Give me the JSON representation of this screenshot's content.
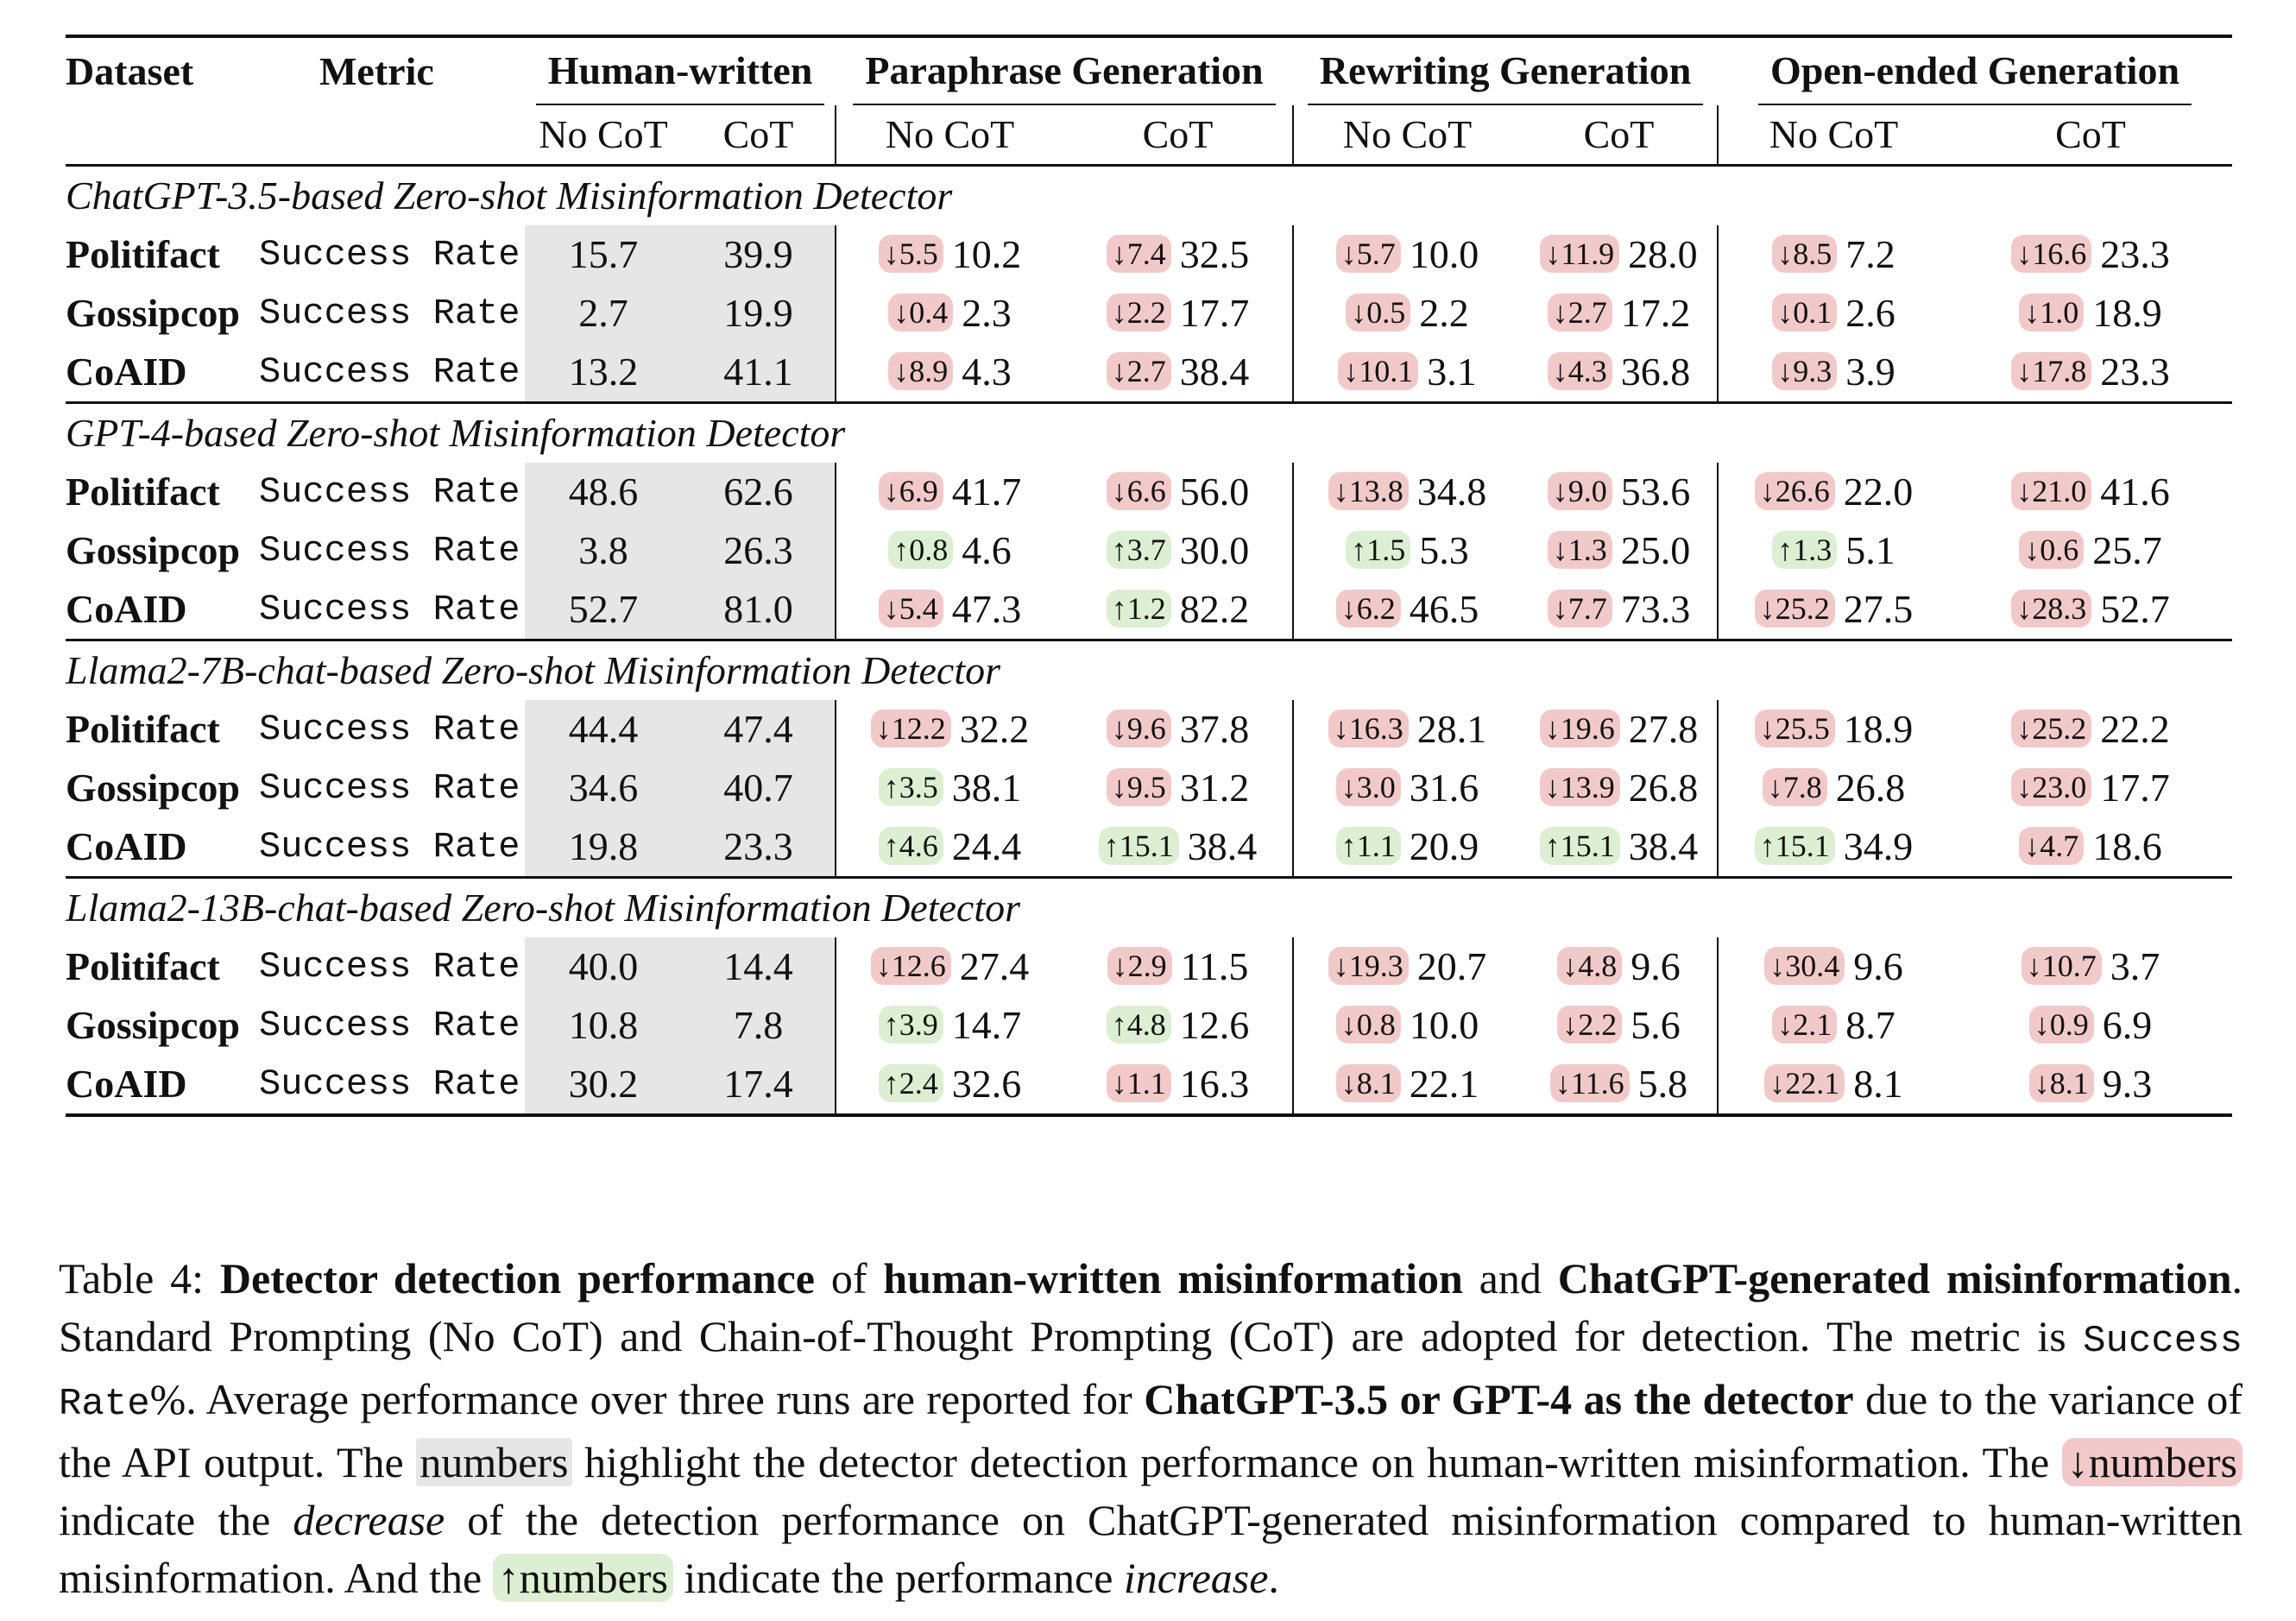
{
  "table": {
    "header": {
      "dataset": "Dataset",
      "metric": "Metric",
      "groups": [
        "Human-written",
        "Paraphrase Generation",
        "Rewriting Generation",
        "Open-ended Generation"
      ],
      "no_cot": "No CoT",
      "cot": "CoT"
    },
    "sections": [
      {
        "title": "ChatGPT-3.5-based Zero-shot Misinformation Detector",
        "rows": [
          {
            "dataset": "Politifact",
            "metric": "Success Rate",
            "hw": [
              "15.7",
              "39.9"
            ],
            "cells": [
              {
                "d": "↓5.5",
                "dir": "dec",
                "v": "10.2"
              },
              {
                "d": "↓7.4",
                "dir": "dec",
                "v": "32.5"
              },
              {
                "d": "↓5.7",
                "dir": "dec",
                "v": "10.0"
              },
              {
                "d": "↓11.9",
                "dir": "dec",
                "v": "28.0"
              },
              {
                "d": "↓8.5",
                "dir": "dec",
                "v": "7.2"
              },
              {
                "d": "↓16.6",
                "dir": "dec",
                "v": "23.3"
              }
            ]
          },
          {
            "dataset": "Gossipcop",
            "metric": "Success Rate",
            "hw": [
              "2.7",
              "19.9"
            ],
            "cells": [
              {
                "d": "↓0.4",
                "dir": "dec",
                "v": "2.3"
              },
              {
                "d": "↓2.2",
                "dir": "dec",
                "v": "17.7"
              },
              {
                "d": "↓0.5",
                "dir": "dec",
                "v": "2.2"
              },
              {
                "d": "↓2.7",
                "dir": "dec",
                "v": "17.2"
              },
              {
                "d": "↓0.1",
                "dir": "dec",
                "v": "2.6"
              },
              {
                "d": "↓1.0",
                "dir": "dec",
                "v": "18.9"
              }
            ]
          },
          {
            "dataset": "CoAID",
            "metric": "Success Rate",
            "hw": [
              "13.2",
              "41.1"
            ],
            "cells": [
              {
                "d": "↓8.9",
                "dir": "dec",
                "v": "4.3"
              },
              {
                "d": "↓2.7",
                "dir": "dec",
                "v": "38.4"
              },
              {
                "d": "↓10.1",
                "dir": "dec",
                "v": "3.1"
              },
              {
                "d": "↓4.3",
                "dir": "dec",
                "v": "36.8"
              },
              {
                "d": "↓9.3",
                "dir": "dec",
                "v": "3.9"
              },
              {
                "d": "↓17.8",
                "dir": "dec",
                "v": "23.3"
              }
            ]
          }
        ]
      },
      {
        "title": "GPT-4-based Zero-shot Misinformation Detector",
        "rows": [
          {
            "dataset": "Politifact",
            "metric": "Success Rate",
            "hw": [
              "48.6",
              "62.6"
            ],
            "cells": [
              {
                "d": "↓6.9",
                "dir": "dec",
                "v": "41.7"
              },
              {
                "d": "↓6.6",
                "dir": "dec",
                "v": "56.0"
              },
              {
                "d": "↓13.8",
                "dir": "dec",
                "v": "34.8"
              },
              {
                "d": "↓9.0",
                "dir": "dec",
                "v": "53.6"
              },
              {
                "d": "↓26.6",
                "dir": "dec",
                "v": "22.0"
              },
              {
                "d": "↓21.0",
                "dir": "dec",
                "v": "41.6"
              }
            ]
          },
          {
            "dataset": "Gossipcop",
            "metric": "Success Rate",
            "hw": [
              "3.8",
              "26.3"
            ],
            "cells": [
              {
                "d": "↑0.8",
                "dir": "inc",
                "v": "4.6"
              },
              {
                "d": "↑3.7",
                "dir": "inc",
                "v": "30.0"
              },
              {
                "d": "↑1.5",
                "dir": "inc",
                "v": "5.3"
              },
              {
                "d": "↓1.3",
                "dir": "dec",
                "v": "25.0"
              },
              {
                "d": "↑1.3",
                "dir": "inc",
                "v": "5.1"
              },
              {
                "d": "↓0.6",
                "dir": "dec",
                "v": "25.7"
              }
            ]
          },
          {
            "dataset": "CoAID",
            "metric": "Success Rate",
            "hw": [
              "52.7",
              "81.0"
            ],
            "cells": [
              {
                "d": "↓5.4",
                "dir": "dec",
                "v": "47.3"
              },
              {
                "d": "↑1.2",
                "dir": "inc",
                "v": "82.2"
              },
              {
                "d": "↓6.2",
                "dir": "dec",
                "v": "46.5"
              },
              {
                "d": "↓7.7",
                "dir": "dec",
                "v": "73.3"
              },
              {
                "d": "↓25.2",
                "dir": "dec",
                "v": "27.5"
              },
              {
                "d": "↓28.3",
                "dir": "dec",
                "v": "52.7"
              }
            ]
          }
        ]
      },
      {
        "title": "Llama2-7B-chat-based Zero-shot Misinformation Detector",
        "rows": [
          {
            "dataset": "Politifact",
            "metric": "Success Rate",
            "hw": [
              "44.4",
              "47.4"
            ],
            "cells": [
              {
                "d": "↓12.2",
                "dir": "dec",
                "v": "32.2"
              },
              {
                "d": "↓9.6",
                "dir": "dec",
                "v": "37.8"
              },
              {
                "d": "↓16.3",
                "dir": "dec",
                "v": "28.1"
              },
              {
                "d": "↓19.6",
                "dir": "dec",
                "v": "27.8"
              },
              {
                "d": "↓25.5",
                "dir": "dec",
                "v": "18.9"
              },
              {
                "d": "↓25.2",
                "dir": "dec",
                "v": "22.2"
              }
            ]
          },
          {
            "dataset": "Gossipcop",
            "metric": "Success Rate",
            "hw": [
              "34.6",
              "40.7"
            ],
            "cells": [
              {
                "d": "↑3.5",
                "dir": "inc",
                "v": "38.1"
              },
              {
                "d": "↓9.5",
                "dir": "dec",
                "v": "31.2"
              },
              {
                "d": "↓3.0",
                "dir": "dec",
                "v": "31.6"
              },
              {
                "d": "↓13.9",
                "dir": "dec",
                "v": "26.8"
              },
              {
                "d": "↓7.8",
                "dir": "dec",
                "v": "26.8"
              },
              {
                "d": "↓23.0",
                "dir": "dec",
                "v": "17.7"
              }
            ]
          },
          {
            "dataset": "CoAID",
            "metric": "Success Rate",
            "hw": [
              "19.8",
              "23.3"
            ],
            "cells": [
              {
                "d": "↑4.6",
                "dir": "inc",
                "v": "24.4"
              },
              {
                "d": "↑15.1",
                "dir": "inc",
                "v": "38.4"
              },
              {
                "d": "↑1.1",
                "dir": "inc",
                "v": "20.9"
              },
              {
                "d": "↑15.1",
                "dir": "inc",
                "v": "38.4"
              },
              {
                "d": "↑15.1",
                "dir": "inc",
                "v": "34.9"
              },
              {
                "d": "↓4.7",
                "dir": "dec",
                "v": "18.6"
              }
            ]
          }
        ]
      },
      {
        "title": "Llama2-13B-chat-based Zero-shot Misinformation Detector",
        "rows": [
          {
            "dataset": "Politifact",
            "metric": "Success Rate",
            "hw": [
              "40.0",
              "14.4"
            ],
            "cells": [
              {
                "d": "↓12.6",
                "dir": "dec",
                "v": "27.4"
              },
              {
                "d": "↓2.9",
                "dir": "dec",
                "v": "11.5"
              },
              {
                "d": "↓19.3",
                "dir": "dec",
                "v": "20.7"
              },
              {
                "d": "↓4.8",
                "dir": "dec",
                "v": "9.6"
              },
              {
                "d": "↓30.4",
                "dir": "dec",
                "v": "9.6"
              },
              {
                "d": "↓10.7",
                "dir": "dec",
                "v": "3.7"
              }
            ]
          },
          {
            "dataset": "Gossipcop",
            "metric": "Success Rate",
            "hw": [
              "10.8",
              "7.8"
            ],
            "cells": [
              {
                "d": "↑3.9",
                "dir": "inc",
                "v": "14.7"
              },
              {
                "d": "↑4.8",
                "dir": "inc",
                "v": "12.6"
              },
              {
                "d": "↓0.8",
                "dir": "dec",
                "v": "10.0"
              },
              {
                "d": "↓2.2",
                "dir": "dec",
                "v": "5.6"
              },
              {
                "d": "↓2.1",
                "dir": "dec",
                "v": "8.7"
              },
              {
                "d": "↓0.9",
                "dir": "dec",
                "v": "6.9"
              }
            ]
          },
          {
            "dataset": "CoAID",
            "metric": "Success Rate",
            "hw": [
              "30.2",
              "17.4"
            ],
            "cells": [
              {
                "d": "↑2.4",
                "dir": "inc",
                "v": "32.6"
              },
              {
                "d": "↓1.1",
                "dir": "dec",
                "v": "16.3"
              },
              {
                "d": "↓8.1",
                "dir": "dec",
                "v": "22.1"
              },
              {
                "d": "↓11.6",
                "dir": "dec",
                "v": "5.8"
              },
              {
                "d": "↓22.1",
                "dir": "dec",
                "v": "8.1"
              },
              {
                "d": "↓8.1",
                "dir": "dec",
                "v": "9.3"
              }
            ]
          }
        ]
      }
    ]
  },
  "caption": {
    "p1": "Table 4: ",
    "b1": "Detector detection performance",
    "p2": " of ",
    "b2": "human-written misinformation",
    "p3": " and ",
    "b3": "ChatGPT-generated misinformation",
    "p4": ". Standard Prompting (No CoT) and Chain-of-Thought Prompting (CoT) are adopted for detection. The metric is ",
    "m1": "Success Rate",
    "p5": "%. Average performance over three runs are reported for ",
    "b4": "ChatGPT-3.5 or GPT-4 as the detector",
    "p6": " due to the variance of the API output. The ",
    "h1": "numbers",
    "p7": " highlight the detector detection performance on human-written misinformation. The ",
    "h2": "↓numbers",
    "p8": " indicate the ",
    "i1": "decrease",
    "p9": " of the detection performance on ChatGPT-generated misinformation compared to human-written misinformation. And the ",
    "h3": "↑numbers",
    "p10": " indicate the performance ",
    "i2": "increase",
    "p11": "."
  }
}
